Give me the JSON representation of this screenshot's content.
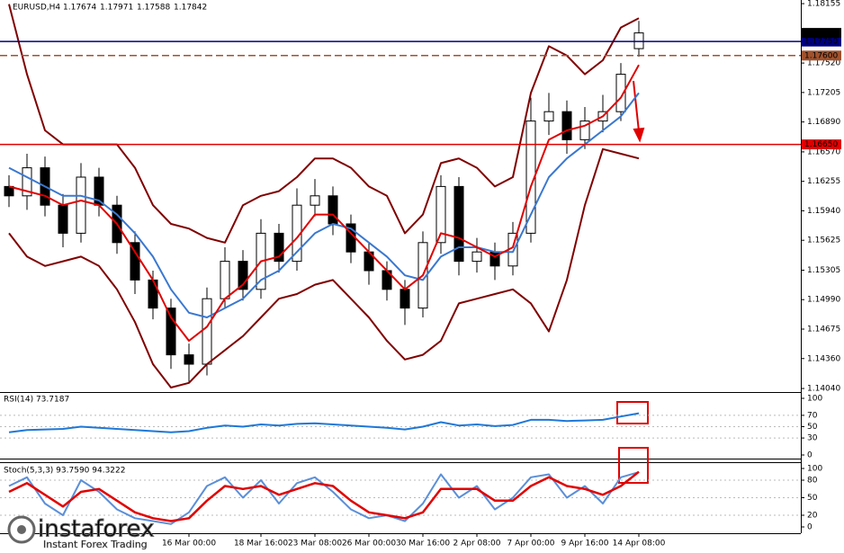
{
  "chart_data": [
    {
      "type": "candlestick",
      "title": "EURUSD,H4",
      "open": [
        1.162,
        1.161,
        1.164,
        1.16,
        1.157,
        1.163,
        1.16,
        1.156,
        1.152,
        1.149,
        1.144,
        1.143,
        1.15,
        1.154,
        1.151,
        1.157,
        1.154,
        1.16,
        1.161,
        1.158,
        1.155,
        1.153,
        1.151,
        1.149,
        1.156,
        1.162,
        1.154,
        1.155,
        1.1535,
        1.157,
        1.169,
        1.17,
        1.167,
        1.169,
        1.17,
        1.17674
      ],
      "high": [
        1.1632,
        1.1655,
        1.1652,
        1.1612,
        1.1645,
        1.164,
        1.161,
        1.1572,
        1.153,
        1.15,
        1.1452,
        1.1512,
        1.1555,
        1.1552,
        1.1585,
        1.158,
        1.1618,
        1.1628,
        1.162,
        1.159,
        1.156,
        1.154,
        1.152,
        1.1572,
        1.1632,
        1.163,
        1.1565,
        1.156,
        1.1582,
        1.1715,
        1.172,
        1.1712,
        1.1705,
        1.1718,
        1.1752,
        1.17971
      ],
      "low": [
        1.1598,
        1.1595,
        1.1588,
        1.1555,
        1.156,
        1.1588,
        1.1548,
        1.1505,
        1.1478,
        1.1425,
        1.141,
        1.1418,
        1.149,
        1.1498,
        1.15,
        1.1528,
        1.153,
        1.1588,
        1.1568,
        1.1538,
        1.1515,
        1.1498,
        1.1472,
        1.148,
        1.1548,
        1.1525,
        1.1528,
        1.152,
        1.1525,
        1.156,
        1.1675,
        1.1655,
        1.166,
        1.1678,
        1.169,
        1.17588
      ],
      "close": [
        1.161,
        1.164,
        1.16,
        1.157,
        1.163,
        1.16,
        1.156,
        1.152,
        1.149,
        1.144,
        1.143,
        1.15,
        1.154,
        1.151,
        1.157,
        1.154,
        1.16,
        1.161,
        1.158,
        1.155,
        1.153,
        1.151,
        1.149,
        1.156,
        1.162,
        1.154,
        1.155,
        1.1535,
        1.157,
        1.169,
        1.17,
        1.167,
        1.169,
        1.17,
        1.174,
        1.17842
      ],
      "overlays": [
        {
          "color": "#800000",
          "width": 2,
          "values": [
            1.1815,
            1.174,
            1.168,
            1.1665,
            1.1665,
            1.1665,
            1.1665,
            1.164,
            1.16,
            1.158,
            1.1575,
            1.1565,
            1.156,
            1.16,
            1.161,
            1.1615,
            1.163,
            1.165,
            1.165,
            1.164,
            1.162,
            1.161,
            1.157,
            1.159,
            1.1645,
            1.165,
            1.164,
            1.162,
            1.163,
            1.172,
            1.177,
            1.176,
            1.174,
            1.1755,
            1.179,
            1.18
          ]
        },
        {
          "color": "#800000",
          "width": 2,
          "values": [
            1.157,
            1.1545,
            1.1535,
            1.154,
            1.1545,
            1.1535,
            1.151,
            1.1475,
            1.143,
            1.1405,
            1.141,
            1.143,
            1.1445,
            1.146,
            1.148,
            1.15,
            1.1505,
            1.1515,
            1.152,
            1.15,
            1.148,
            1.1455,
            1.1435,
            1.144,
            1.1455,
            1.1495,
            1.15,
            1.1505,
            1.151,
            1.1495,
            1.1465,
            1.152,
            1.16,
            1.166,
            1.1655,
            1.165
          ]
        },
        {
          "color": "#3a78d0",
          "width": 2,
          "values": [
            1.164,
            1.163,
            1.162,
            1.161,
            1.161,
            1.1605,
            1.159,
            1.157,
            1.1545,
            1.151,
            1.1485,
            1.148,
            1.149,
            1.15,
            1.152,
            1.153,
            1.155,
            1.157,
            1.158,
            1.1575,
            1.156,
            1.1545,
            1.1525,
            1.152,
            1.1545,
            1.1555,
            1.1555,
            1.155,
            1.155,
            1.159,
            1.163,
            1.165,
            1.1665,
            1.168,
            1.1695,
            1.172
          ]
        },
        {
          "color": "#e00000",
          "width": 2,
          "values": [
            1.162,
            1.1615,
            1.161,
            1.16,
            1.1605,
            1.16,
            1.158,
            1.155,
            1.152,
            1.148,
            1.1455,
            1.147,
            1.15,
            1.1515,
            1.154,
            1.1545,
            1.1565,
            1.159,
            1.159,
            1.157,
            1.155,
            1.153,
            1.151,
            1.1525,
            1.157,
            1.1565,
            1.1555,
            1.1545,
            1.1555,
            1.162,
            1.167,
            1.168,
            1.1685,
            1.1695,
            1.1715,
            1.175
          ]
        }
      ],
      "levels": [
        {
          "value": 1.1775,
          "label": "1.17750",
          "color": "#000080"
        },
        {
          "value": 1.176,
          "label": "1.17600",
          "color": "#a0522d",
          "dashed": true
        },
        {
          "value": 1.1665,
          "label": "1.16650",
          "color": "#e00000"
        }
      ],
      "ylim": [
        1.14002,
        1.18194
      ],
      "yticks": [
        1.18155,
        {
          "value": 1.1752,
          "label": "1.17520"
        },
        1.17205,
        {
          "value": 1.1689,
          "label": "1.16890"
        },
        {
          "value": 1.1657,
          "label": "1.16570"
        },
        1.16255,
        {
          "value": 1.1594,
          "label": "1.15940"
        },
        1.15625,
        1.15305,
        {
          "value": 1.1499,
          "label": "1.14990"
        },
        1.14675,
        {
          "value": 1.1436,
          "label": "1.14360"
        },
        {
          "value": 1.1404,
          "label": "1.14040"
        }
      ]
    },
    {
      "type": "line",
      "title": "RSI(14) 73.7187",
      "series": [
        {
          "color": "#1e78d8",
          "values": [
            40,
            44,
            45,
            46,
            50,
            48,
            46,
            44,
            42,
            40,
            42,
            48,
            52,
            50,
            54,
            52,
            55,
            56,
            54,
            52,
            50,
            48,
            45,
            50,
            58,
            52,
            54,
            51,
            53,
            62,
            62,
            60,
            61,
            62,
            68,
            73.7187
          ]
        }
      ],
      "ylim": [
        0,
        100
      ],
      "yticks": [
        0,
        30,
        50,
        70,
        100
      ]
    },
    {
      "type": "line",
      "title": "Stoch(5,3,3) 93.7590 94.3222",
      "categories": [
        null,
        null,
        null,
        null,
        null,
        null,
        null,
        null,
        null,
        null,
        "16 Mar 00:00",
        null,
        null,
        null,
        "18 Mar 16:00",
        null,
        null,
        "23 Mar 08:00",
        null,
        null,
        "26 Mar 00:00",
        null,
        null,
        "30 Mar 16:00",
        null,
        null,
        "2 Apr 08:00",
        null,
        null,
        "7 Apr 00:00",
        null,
        null,
        "9 Apr 16:00",
        null,
        null,
        "14 Apr 08:00"
      ],
      "series": [
        {
          "color": "#5b8fd8",
          "values": [
            70,
            85,
            40,
            20,
            80,
            60,
            30,
            15,
            10,
            5,
            25,
            70,
            85,
            50,
            80,
            40,
            75,
            85,
            60,
            30,
            15,
            20,
            10,
            40,
            90,
            50,
            70,
            30,
            50,
            85,
            90,
            50,
            70,
            40,
            85,
            93.759
          ]
        },
        {
          "color": "#e00000",
          "values": [
            60,
            75,
            55,
            35,
            60,
            65,
            45,
            25,
            15,
            10,
            15,
            45,
            70,
            65,
            70,
            55,
            65,
            75,
            70,
            45,
            25,
            20,
            15,
            25,
            65,
            65,
            65,
            45,
            45,
            70,
            85,
            70,
            65,
            55,
            70,
            94.3222
          ]
        }
      ],
      "ylim": [
        0,
        100
      ],
      "yticks": [
        0,
        20,
        50,
        80,
        100
      ]
    }
  ],
  "logo": {
    "name": "instaforex",
    "tagline": "Instant Forex Trading"
  }
}
